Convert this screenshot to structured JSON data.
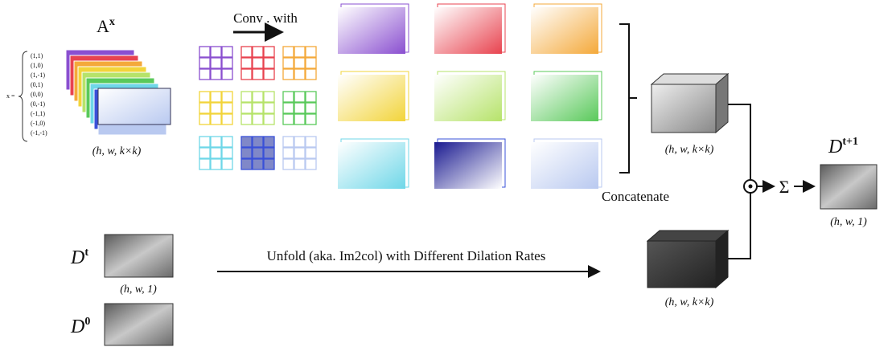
{
  "feature": {
    "symbol": "A",
    "superscript": "x",
    "shape": "(h, w, k×k)",
    "offsets_prefix": "x =",
    "offsets": [
      "(1,1)",
      "(1,0)",
      "(1,-1)",
      "(0,1)",
      "(0,0)",
      "(0,-1)",
      "(-1,1)",
      "(-1,0)",
      "(-1,-1)"
    ]
  },
  "conv_label": "Conv . with",
  "affinity_shape": "(h, w, k×k)",
  "concatenate": "Concatenate",
  "unfold_label": "Unfold (aka. Im2col) with Different Dilation Rates",
  "unfold_shape": "(h, w, k×k)",
  "depth_t": {
    "symbol": "D",
    "superscript": "t",
    "shape": "(h, w, 1)"
  },
  "depth_0": {
    "symbol": "D",
    "superscript": "0"
  },
  "sum_symbol": "Σ",
  "output": {
    "symbol": "D",
    "superscript": "t+1",
    "shape": "(h, w, 1)"
  }
}
